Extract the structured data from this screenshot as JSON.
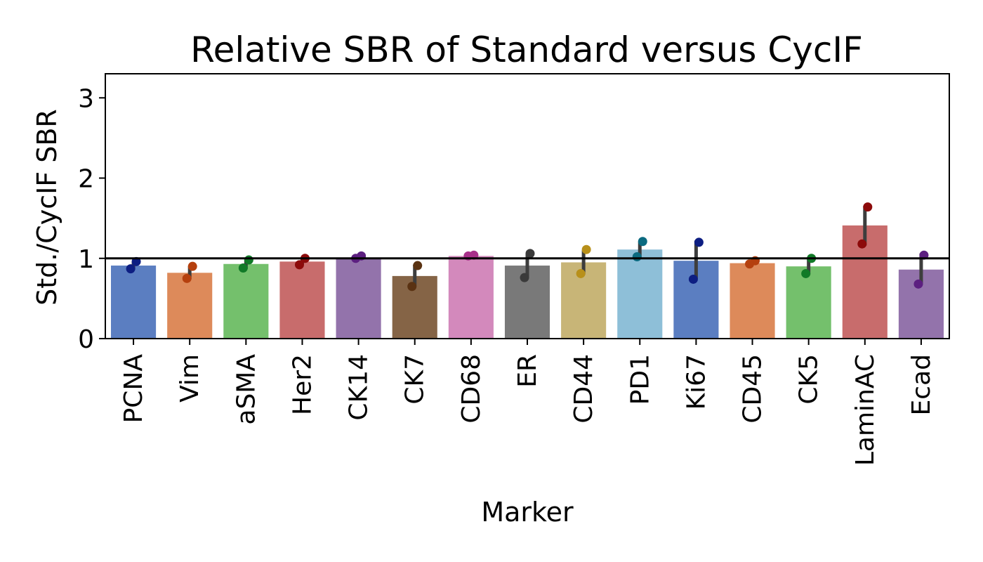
{
  "chart_data": {
    "type": "bar",
    "title": "Relative SBR of Standard versus CycIF",
    "xlabel": "Marker",
    "ylabel": "Std./CycIF SBR",
    "ylim": [
      0,
      3.3
    ],
    "yticks": [
      0,
      1,
      2,
      3
    ],
    "grid": false,
    "reference_line": 1,
    "categories": [
      "PCNA",
      "Vim",
      "aSMA",
      "Her2",
      "CK14",
      "CK7",
      "CD68",
      "ER",
      "CD44",
      "PD1",
      "Ki67",
      "CD45",
      "CK5",
      "LaminAC",
      "Ecad"
    ],
    "values": [
      0.91,
      0.82,
      0.93,
      0.96,
      1.01,
      0.78,
      1.03,
      0.91,
      0.95,
      1.11,
      0.97,
      0.94,
      0.9,
      1.41,
      0.86
    ],
    "error_low": [
      0.86,
      0.74,
      0.87,
      0.92,
      0.99,
      0.65,
      1.02,
      0.76,
      0.8,
      1.01,
      0.74,
      0.92,
      0.8,
      1.16,
      0.67
    ],
    "error_high": [
      0.96,
      0.9,
      0.98,
      1.0,
      1.03,
      0.92,
      1.05,
      1.06,
      1.1,
      1.21,
      1.22,
      0.97,
      1.0,
      1.65,
      1.06
    ],
    "points": [
      [
        0.96,
        0.87
      ],
      [
        0.9,
        0.75
      ],
      [
        0.98,
        0.88
      ],
      [
        1.0,
        0.92
      ],
      [
        1.03,
        1.0
      ],
      [
        0.91,
        0.65
      ],
      [
        1.04,
        1.03
      ],
      [
        1.06,
        0.76
      ],
      [
        1.11,
        0.81
      ],
      [
        1.21,
        1.02
      ],
      [
        1.2,
        0.74
      ],
      [
        0.97,
        0.93
      ],
      [
        1.0,
        0.81
      ],
      [
        1.64,
        1.18
      ],
      [
        1.04,
        0.68
      ]
    ],
    "bar_colors": [
      "#5b7ec1",
      "#dd8a5a",
      "#74c06c",
      "#c86c6c",
      "#9373ab",
      "#856446",
      "#d389bc",
      "#797979",
      "#c8b577",
      "#8ebfd8",
      "#5b7ec1",
      "#dd8a5a",
      "#74c06c",
      "#c86c6c",
      "#9373ab"
    ],
    "point_colors": [
      "#0d1e82",
      "#b5400e",
      "#117a27",
      "#8c0a0a",
      "#5c1f80",
      "#5a3212",
      "#a8308a",
      "#3a3a3a",
      "#b8901a",
      "#0b6a80",
      "#0d1e82",
      "#b5400e",
      "#117a27",
      "#8c0a0a",
      "#5c1f80"
    ]
  }
}
